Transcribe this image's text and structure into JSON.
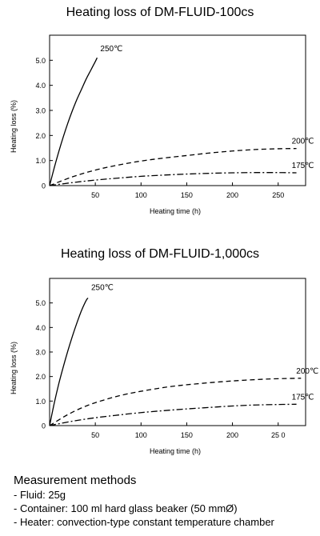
{
  "charts": [
    {
      "title": "Heating loss of DM-FLUID-100cs",
      "xlabel": "Heating time (h)",
      "ylabel": "Heating loss (%)",
      "xticks": [
        {
          "v": 50,
          "label": "50"
        },
        {
          "v": 100,
          "label": "100"
        },
        {
          "v": 150,
          "label": "150"
        },
        {
          "v": 200,
          "label": "200"
        },
        {
          "v": 250,
          "label": "250"
        }
      ],
      "yticks": [
        {
          "v": 0,
          "label": "0"
        },
        {
          "v": 1,
          "label": "1.0"
        },
        {
          "v": 2,
          "label": "2.0"
        },
        {
          "v": 3,
          "label": "3.0"
        },
        {
          "v": 4,
          "label": "4.0"
        },
        {
          "v": 5,
          "label": "5.0"
        }
      ]
    },
    {
      "title": "Heating loss of DM-FLUID-1,000cs",
      "xlabel": "Heating time (h)",
      "ylabel": "Heating loss (%)",
      "xticks": [
        {
          "v": 50,
          "label": "50"
        },
        {
          "v": 100,
          "label": "100"
        },
        {
          "v": 150,
          "label": "150"
        },
        {
          "v": 200,
          "label": "200"
        },
        {
          "v": 250,
          "label": "25 0"
        }
      ],
      "yticks": [
        {
          "v": 0,
          "label": "0"
        },
        {
          "v": 1,
          "label": "1.0"
        },
        {
          "v": 2,
          "label": "2.0"
        },
        {
          "v": 3,
          "label": "3.0"
        },
        {
          "v": 4,
          "label": "4.0"
        },
        {
          "v": 5,
          "label": "5.0"
        }
      ]
    }
  ],
  "chart_data": [
    {
      "type": "line",
      "title": "Heating loss of DM-FLUID-100cs",
      "xlabel": "Heating time (h)",
      "ylabel": "Heating loss (%)",
      "xlim": [
        0,
        280
      ],
      "ylim": [
        0,
        6
      ],
      "grid": false,
      "series": [
        {
          "name": "250℃",
          "style": "solid",
          "x": [
            0,
            5,
            10,
            15,
            20,
            25,
            30,
            35,
            40,
            45,
            50,
            52
          ],
          "y": [
            0,
            0.7,
            1.35,
            1.95,
            2.5,
            3.0,
            3.45,
            3.85,
            4.25,
            4.6,
            4.95,
            5.1
          ]
        },
        {
          "name": "200℃",
          "style": "dashed",
          "x": [
            0,
            25,
            50,
            75,
            100,
            125,
            150,
            175,
            200,
            225,
            250,
            270
          ],
          "y": [
            0,
            0.35,
            0.62,
            0.82,
            0.98,
            1.1,
            1.2,
            1.3,
            1.38,
            1.44,
            1.47,
            1.48
          ]
        },
        {
          "name": "175℃",
          "style": "dash-dot",
          "x": [
            0,
            25,
            50,
            75,
            100,
            125,
            150,
            175,
            200,
            225,
            250,
            270
          ],
          "y": [
            0,
            0.12,
            0.22,
            0.3,
            0.37,
            0.42,
            0.46,
            0.49,
            0.51,
            0.52,
            0.52,
            0.51
          ]
        }
      ]
    },
    {
      "type": "line",
      "title": "Heating loss of DM-FLUID-1,000cs",
      "xlabel": "Heating time (h)",
      "ylabel": "Heating loss (%)",
      "xlim": [
        0,
        280
      ],
      "ylim": [
        0,
        6
      ],
      "grid": false,
      "series": [
        {
          "name": "250℃",
          "style": "solid",
          "x": [
            0,
            5,
            10,
            15,
            20,
            25,
            30,
            35,
            40,
            42
          ],
          "y": [
            0,
            0.9,
            1.7,
            2.4,
            3.05,
            3.65,
            4.2,
            4.7,
            5.1,
            5.2
          ]
        },
        {
          "name": "200℃",
          "style": "dashed",
          "x": [
            0,
            20,
            40,
            60,
            80,
            100,
            130,
            160,
            200,
            240,
            275
          ],
          "y": [
            0,
            0.45,
            0.8,
            1.05,
            1.25,
            1.4,
            1.58,
            1.7,
            1.82,
            1.9,
            1.93
          ]
        },
        {
          "name": "175℃",
          "style": "dash-dot",
          "x": [
            0,
            25,
            50,
            75,
            100,
            125,
            150,
            175,
            200,
            225,
            250,
            270
          ],
          "y": [
            0,
            0.18,
            0.32,
            0.43,
            0.53,
            0.61,
            0.68,
            0.74,
            0.8,
            0.84,
            0.86,
            0.87
          ]
        }
      ]
    }
  ],
  "notes": {
    "heading": "Measurement methods",
    "items": [
      "- Fluid: 25g",
      "- Container: 100 ml hard glass beaker (50 mmØ)",
      "- Heater: convection-type constant temperature chamber"
    ]
  }
}
